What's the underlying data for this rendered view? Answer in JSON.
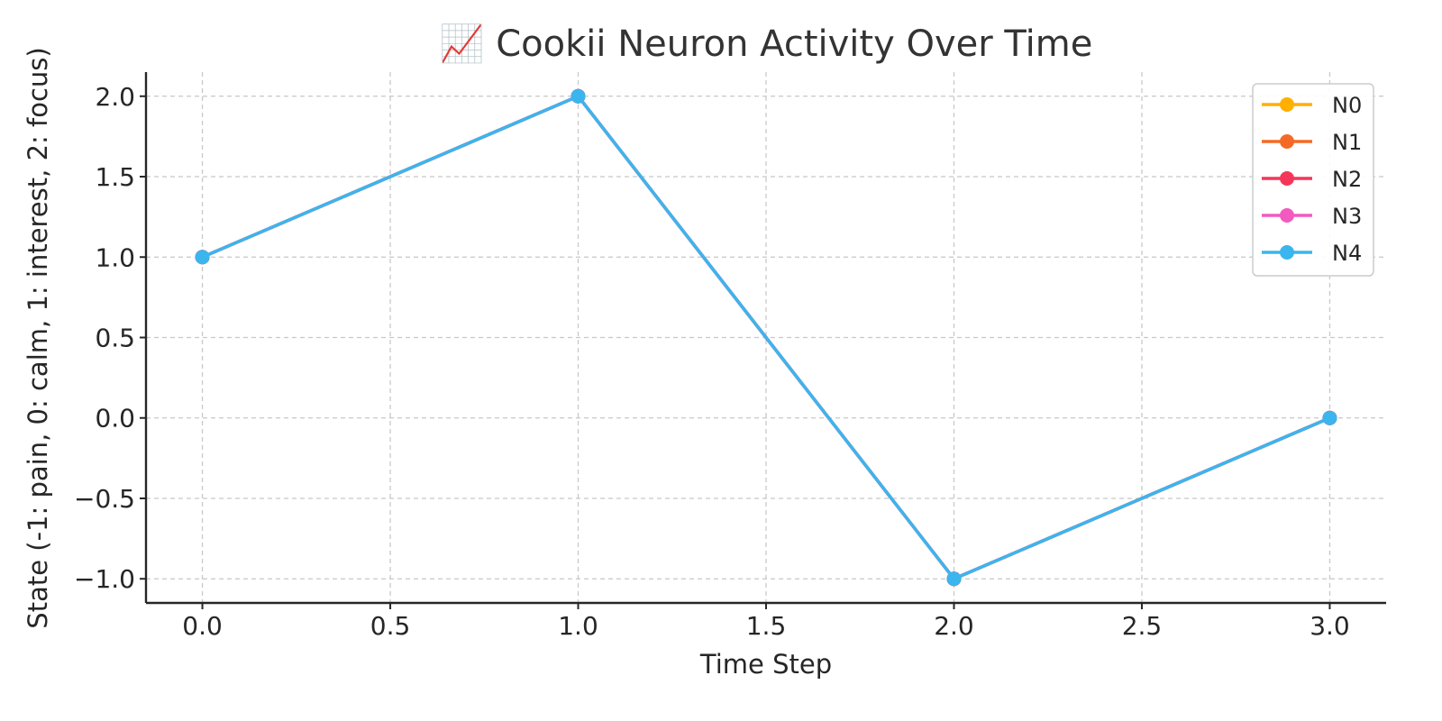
{
  "chart_data": {
    "type": "line",
    "title": "📈 Cookii Neuron Activity Over Time",
    "xlabel": "Time Step",
    "ylabel": "State (-1: pain, 0: calm, 1: interest, 2: focus)",
    "x": [
      0,
      1,
      2,
      3
    ],
    "xlim": [
      -0.15,
      3.15
    ],
    "ylim": [
      -1.15,
      2.15
    ],
    "xticks": [
      0.0,
      0.5,
      1.0,
      1.5,
      2.0,
      2.5,
      3.0
    ],
    "xtick_labels": [
      "0.0",
      "0.5",
      "1.0",
      "1.5",
      "2.0",
      "2.5",
      "3.0"
    ],
    "yticks": [
      -1.0,
      -0.5,
      0.0,
      0.5,
      1.0,
      1.5,
      2.0
    ],
    "ytick_labels": [
      "−1.0",
      "−0.5",
      "0.0",
      "0.5",
      "1.0",
      "1.5",
      "2.0"
    ],
    "grid": true,
    "legend_position": "top-right",
    "series": [
      {
        "name": "N0",
        "color": "#FFB000",
        "values": [
          1,
          2,
          -1,
          0
        ]
      },
      {
        "name": "N1",
        "color": "#F46A25",
        "values": [
          1,
          2,
          -1,
          0
        ]
      },
      {
        "name": "N2",
        "color": "#F4365A",
        "values": [
          1,
          2,
          -1,
          0
        ]
      },
      {
        "name": "N3",
        "color": "#F25AC0",
        "values": [
          1,
          2,
          -1,
          0
        ]
      },
      {
        "name": "N4",
        "color": "#3BB5EE",
        "values": [
          1,
          2,
          -1,
          0
        ]
      }
    ]
  }
}
